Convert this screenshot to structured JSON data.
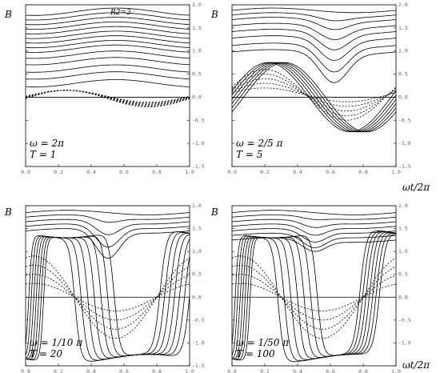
{
  "figure": {
    "ylabel": "B",
    "xlabel": "ωt/2π",
    "panel_title": "R2=3"
  },
  "chart_data": [
    {
      "type": "line",
      "title": "R2=3",
      "ylabel": "B",
      "xlim": [
        0.0,
        1.0
      ],
      "ylim": [
        -1.5,
        2.0
      ],
      "xticks": [
        "0.0",
        "0.2",
        "0.4",
        "0.6",
        "0.8",
        "1.0"
      ],
      "yticks": [
        "2.0",
        "1.5",
        "1.0",
        "0.5",
        "0.0",
        "-0.5",
        "-1.0",
        "-1.5"
      ],
      "annotation_lines": [
        "ω = 2π",
        "T = 1"
      ],
      "zero_line": true,
      "series_params": {
        "upper_family": {
          "style": "solid",
          "offsets": [
            1.85,
            1.75,
            1.65,
            1.55,
            1.45,
            1.35,
            1.25,
            1.15,
            1.05,
            0.92,
            0.78,
            0.62,
            0.47,
            0.3
          ],
          "amplitude": 0.08,
          "phase_peak": 0.55
        },
        "lower_family": {
          "style": "dashed",
          "amplitudes": [
            0.18,
            0.17,
            0.16,
            0.15,
            0.14,
            0.13
          ],
          "phase_peak": 0.25
        }
      }
    },
    {
      "type": "line",
      "ylabel": "B",
      "xlim": [
        0.0,
        1.0
      ],
      "ylim": [
        -1.5,
        2.0
      ],
      "xticks": [
        "0.0",
        "0.2",
        "0.4",
        "0.6",
        "0.8",
        "1.0"
      ],
      "yticks": [
        "2.0",
        "1.5",
        "1.0",
        "0.5",
        "0.0",
        "-0.5",
        "-1.0",
        "-1.5"
      ],
      "annotation_lines": [
        "ω = 2/5 π",
        "T = 5"
      ],
      "zero_line": true,
      "series_params": {
        "upper_family": {
          "style": "solid",
          "offsets": [
            1.88,
            1.78,
            1.68,
            1.55,
            1.42,
            1.28,
            1.12,
            0.98
          ],
          "dip": 0.6,
          "dip_center": 0.62
        },
        "lower_family": {
          "style": "solid+dashed",
          "amplitude": 0.75,
          "phases": [
            0.22,
            0.24,
            0.26,
            0.28,
            0.3,
            0.32
          ]
        }
      }
    },
    {
      "type": "line",
      "ylabel": "B",
      "xlim": [
        0.0,
        1.0
      ],
      "ylim": [
        -1.5,
        2.0
      ],
      "xticks": [
        "0.0",
        "0.2",
        "0.4",
        "0.6",
        "0.8",
        "1.0"
      ],
      "yticks": [
        "2.0",
        "1.5",
        "1.0",
        "0.5",
        "0.0",
        "-0.5",
        "-1.0",
        "-1.5"
      ],
      "annotation_lines": [
        "ω = 1/10 π",
        "T = 20"
      ],
      "zero_line": true,
      "series_params": {
        "upper_family": {
          "style": "solid",
          "offsets": [
            1.85,
            1.75,
            1.65,
            1.55,
            1.45
          ],
          "dip_to": 0.85,
          "dip_center": 0.5
        },
        "switching_family": {
          "style": "solid",
          "fall_centers": [
            0.3,
            0.34,
            0.38,
            0.42,
            0.46,
            0.5,
            0.54
          ],
          "rise_centers": [
            0.82,
            0.85,
            0.88,
            0.91,
            0.94,
            0.97,
            1.0
          ]
        }
      }
    },
    {
      "type": "line",
      "xlabel": "ωt/2π",
      "ylabel": "B",
      "xlim": [
        0.0,
        1.0
      ],
      "ylim": [
        -1.5,
        2.0
      ],
      "xticks": [
        "0.0",
        "0.2",
        "0.4",
        "0.6",
        "0.8",
        "1.0"
      ],
      "yticks": [
        "2.0",
        "1.5",
        "1.0",
        "0.5",
        "0.0",
        "-0.5",
        "-1.0",
        "-1.5"
      ],
      "annotation_lines": [
        "ω = 1/50 π",
        "T = 100"
      ],
      "zero_line": true,
      "series_params": {
        "upper_family": {
          "style": "solid",
          "offsets": [
            1.85,
            1.75,
            1.65,
            1.55,
            1.45,
            1.35,
            1.25
          ],
          "dip_to": 1.0,
          "dip_center": 0.5
        },
        "switching_family": {
          "style": "solid",
          "fall_centers": [
            0.28,
            0.32,
            0.36,
            0.4,
            0.44,
            0.48,
            0.52
          ],
          "rise_centers": [
            0.78,
            0.8,
            0.82,
            0.84,
            0.86,
            0.88,
            0.9
          ]
        }
      }
    }
  ]
}
